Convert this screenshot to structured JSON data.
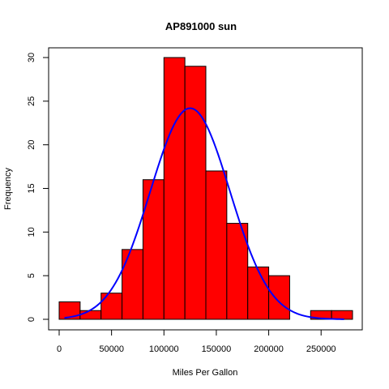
{
  "chart_data": {
    "type": "bar",
    "title": "AP891000 sun",
    "xlabel": "Miles Per Gallon",
    "ylabel": "Frequency",
    "bin_edges": [
      0,
      20000,
      40000,
      60000,
      80000,
      100000,
      120000,
      140000,
      160000,
      180000,
      200000,
      220000,
      240000,
      260000,
      280000
    ],
    "values": [
      2,
      1,
      3,
      8,
      16,
      30,
      29,
      17,
      11,
      6,
      5,
      0,
      1,
      1
    ],
    "xlim": [
      0,
      280000
    ],
    "ylim": [
      0,
      30
    ],
    "x_ticks": [
      0,
      50000,
      100000,
      150000,
      200000,
      250000
    ],
    "x_tick_labels": [
      "0",
      "50000",
      "100000",
      "150000",
      "200000",
      "250000"
    ],
    "y_ticks": [
      0,
      5,
      10,
      15,
      20,
      25,
      30
    ],
    "y_tick_labels": [
      "0",
      "5",
      "10",
      "15",
      "20",
      "25",
      "30"
    ],
    "bar_color": "#ff0000",
    "bar_border_color": "#000000",
    "curve": {
      "type": "normal-density",
      "color": "#0000ff",
      "mean": 125000,
      "sd": 38000,
      "peak": 24.2,
      "x_range": [
        5000,
        272000
      ]
    },
    "grid": false,
    "legend": "none"
  }
}
